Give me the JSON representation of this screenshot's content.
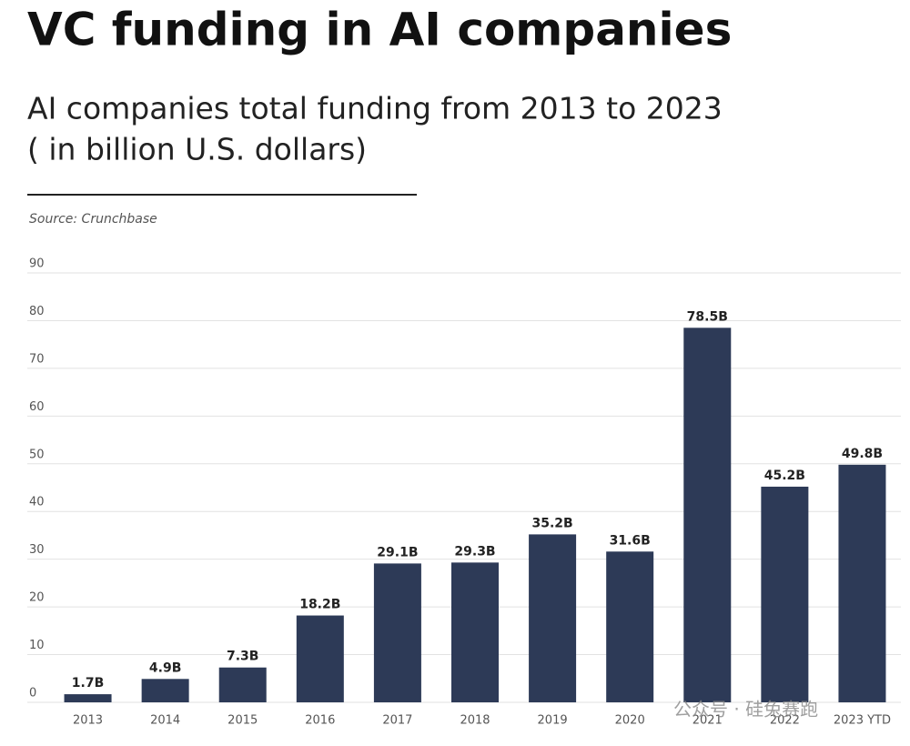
{
  "chart_data": {
    "type": "bar",
    "title": "VC funding in AI companies",
    "subtitle": [
      "AI companies total funding from 2013 to 2023",
      "( in billion U.S. dollars)"
    ],
    "source": "Source: Crunchbase",
    "watermark": "公众号 · 硅兔赛跑",
    "categories": [
      "2013",
      "2014",
      "2015",
      "2016",
      "2017",
      "2018",
      "2019",
      "2020",
      "2021",
      "2022",
      "2023 YTD"
    ],
    "values": [
      1.7,
      4.9,
      7.3,
      18.2,
      29.1,
      29.3,
      35.2,
      31.6,
      78.5,
      45.2,
      49.8
    ],
    "value_labels": [
      "1.7B",
      "4.9B",
      "7.3B",
      "18.2B",
      "29.1B",
      "29.3B",
      "35.2B",
      "31.6B",
      "78.5B",
      "45.2B",
      "49.8B"
    ],
    "color": "#2d3a57",
    "ylim": [
      0,
      90
    ],
    "yticks": [
      0,
      10,
      20,
      30,
      40,
      50,
      60,
      70,
      80,
      90
    ],
    "grid": true
  }
}
